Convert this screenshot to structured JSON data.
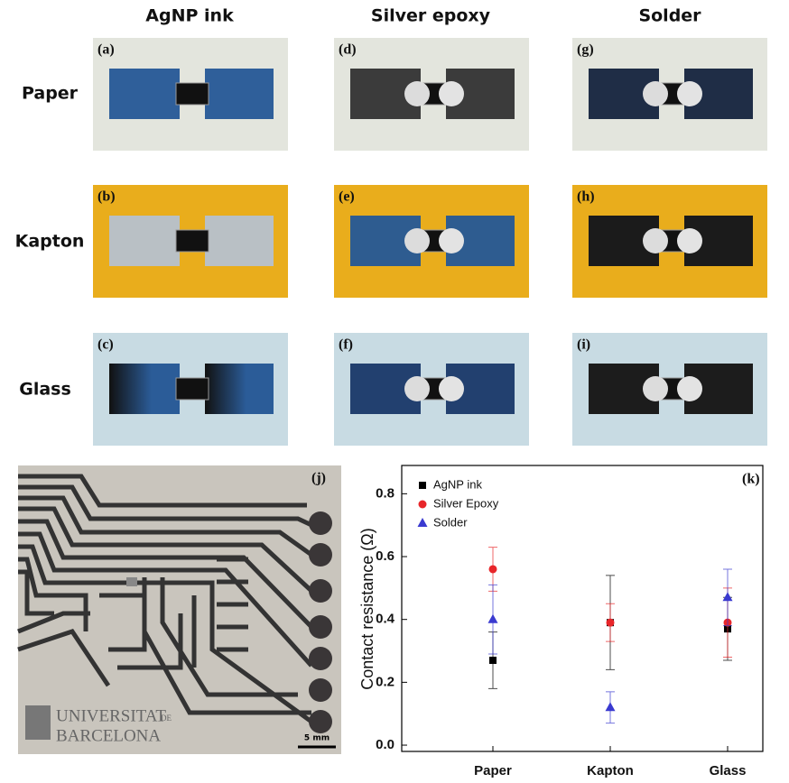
{
  "figure": {
    "columns": [
      "AgNP ink",
      "Silver epoxy",
      "Solder"
    ],
    "rows": [
      "Paper",
      "Kapton",
      "Glass"
    ],
    "panels": [
      [
        "(a)",
        "(d)",
        "(g)"
      ],
      [
        "(b)",
        "(e)",
        "(h)"
      ],
      [
        "(c)",
        "(f)",
        "(i)"
      ]
    ],
    "photo_label": "(j)",
    "chart_label": "(k)",
    "logo": [
      "UNIVERSITAT",
      "DE",
      "BARCELONA"
    ],
    "scale_bar": "5 mm"
  },
  "chart_data": {
    "type": "errorbar-scatter",
    "y_label": "Contact resistance (Ω)",
    "categories": [
      "Paper",
      "Kapton",
      "Glass"
    ],
    "series": [
      {
        "name": "AgNP ink",
        "color": "#000000",
        "marker": "square",
        "values": [
          0.27,
          0.39,
          0.37
        ],
        "errors": [
          0.09,
          0.15,
          0.1
        ]
      },
      {
        "name": "Silver Epoxy",
        "color": "#e8262a",
        "marker": "circle",
        "values": [
          0.56,
          0.39,
          0.39
        ],
        "errors": [
          0.07,
          0.06,
          0.11
        ]
      },
      {
        "name": "Solder",
        "color": "#3a3ad0",
        "marker": "triangle",
        "values": [
          0.4,
          0.12,
          0.47
        ],
        "errors": [
          0.11,
          0.05,
          0.09
        ]
      }
    ],
    "ylim": [
      -0.02,
      0.89
    ],
    "yticks": [
      {
        "value": 0,
        "label": "0.0"
      },
      0.2,
      0.4,
      0.6,
      0.8
    ],
    "legend": "upper-left"
  }
}
